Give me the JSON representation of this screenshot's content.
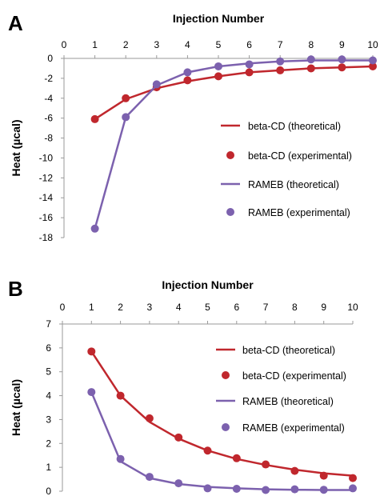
{
  "panels": [
    {
      "letter": "A"
    },
    {
      "letter": "B"
    }
  ],
  "colors": {
    "red": "#c0272d",
    "purple": "#7c61ae",
    "axis": "#9a9a9a"
  },
  "chart_data": [
    {
      "type": "line",
      "panel": "A",
      "xlabel": "Injection Number",
      "ylabel": "Heat (µcal)",
      "x_axis_position": "top",
      "xlim": [
        0,
        10
      ],
      "ylim": [
        -18,
        0
      ],
      "xticks": [
        0,
        1,
        2,
        3,
        4,
        5,
        6,
        7,
        8,
        9,
        10
      ],
      "yticks": [
        0,
        -2,
        -4,
        -6,
        -8,
        -10,
        -12,
        -14,
        -16,
        -18
      ],
      "grid": false,
      "legend_position": "right",
      "series": [
        {
          "name": "beta-CD (theoretical)",
          "kind": "line",
          "color": "#c0272d",
          "x": [
            1,
            2,
            3,
            4,
            5,
            6,
            7,
            8,
            9,
            10
          ],
          "y": [
            -6.1,
            -4.1,
            -3.0,
            -2.3,
            -1.8,
            -1.4,
            -1.2,
            -1.0,
            -0.9,
            -0.8
          ]
        },
        {
          "name": "beta-CD (experimental)",
          "kind": "points",
          "color": "#c0272d",
          "x": [
            1,
            2,
            3,
            4,
            5,
            6,
            7,
            8,
            9,
            10
          ],
          "y": [
            -6.1,
            -4.0,
            -2.9,
            -2.2,
            -1.8,
            -1.4,
            -1.2,
            -1.0,
            -0.9,
            -0.8
          ]
        },
        {
          "name": "RAMEB (theoretical)",
          "kind": "line",
          "color": "#7c61ae",
          "x": [
            1,
            2,
            3,
            4,
            5,
            6,
            7,
            8,
            9,
            10
          ],
          "y": [
            -17.1,
            -5.9,
            -2.7,
            -1.4,
            -0.8,
            -0.5,
            -0.3,
            -0.2,
            -0.2,
            -0.2
          ]
        },
        {
          "name": "RAMEB (experimental)",
          "kind": "points",
          "color": "#7c61ae",
          "x": [
            1,
            2,
            3,
            4,
            5,
            6,
            7,
            8,
            9,
            10
          ],
          "y": [
            -17.1,
            -5.9,
            -2.6,
            -1.4,
            -0.8,
            -0.6,
            -0.3,
            -0.1,
            -0.1,
            -0.2
          ]
        }
      ]
    },
    {
      "type": "line",
      "panel": "B",
      "xlabel": "Injection Number",
      "ylabel": "Heat (µcal)",
      "x_axis_position": "top",
      "xlim": [
        0,
        10
      ],
      "ylim": [
        0,
        7
      ],
      "xticks": [
        0,
        1,
        2,
        3,
        4,
        5,
        6,
        7,
        8,
        9,
        10
      ],
      "yticks": [
        0,
        1,
        2,
        3,
        4,
        5,
        6,
        7
      ],
      "grid": false,
      "legend_position": "right",
      "series": [
        {
          "name": "beta-CD (theoretical)",
          "kind": "line",
          "color": "#c0272d",
          "x": [
            1,
            2,
            3,
            4,
            5,
            6,
            7,
            8,
            9,
            10
          ],
          "y": [
            5.85,
            4.0,
            2.9,
            2.2,
            1.7,
            1.35,
            1.1,
            0.9,
            0.75,
            0.65
          ]
        },
        {
          "name": "beta-CD (experimental)",
          "kind": "points",
          "color": "#c0272d",
          "x": [
            1,
            2,
            3,
            4,
            5,
            6,
            7,
            8,
            9,
            10
          ],
          "y": [
            5.85,
            4.0,
            3.05,
            2.25,
            1.7,
            1.38,
            1.12,
            0.85,
            0.65,
            0.55
          ]
        },
        {
          "name": "RAMEB (theoretical)",
          "kind": "line",
          "color": "#7c61ae",
          "x": [
            1,
            2,
            3,
            4,
            5,
            6,
            7,
            8,
            9,
            10
          ],
          "y": [
            4.15,
            1.25,
            0.55,
            0.3,
            0.18,
            0.12,
            0.08,
            0.06,
            0.05,
            0.05
          ]
        },
        {
          "name": "RAMEB (experimental)",
          "kind": "points",
          "color": "#7c61ae",
          "x": [
            1,
            2,
            3,
            4,
            5,
            6,
            7,
            8,
            9,
            10
          ],
          "y": [
            4.15,
            1.35,
            0.6,
            0.33,
            0.12,
            0.1,
            0.05,
            0.08,
            0.06,
            0.12
          ]
        }
      ]
    }
  ]
}
